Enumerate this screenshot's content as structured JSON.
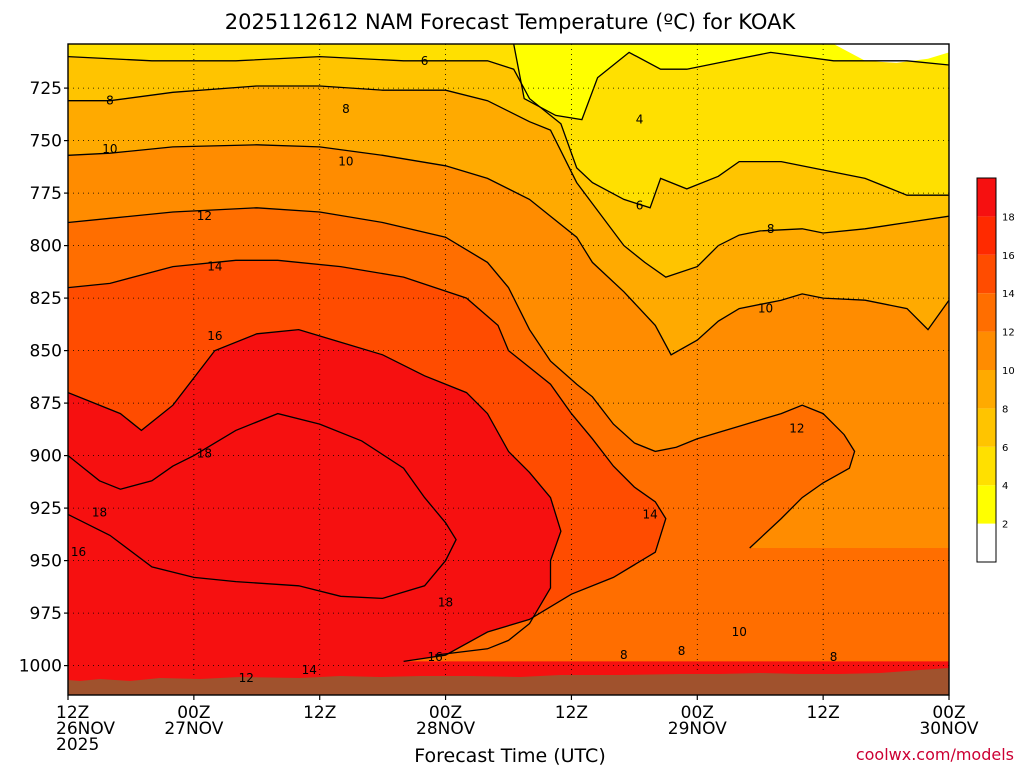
{
  "chart_data": {
    "type": "contour",
    "title": "2025112612 NAM Forecast Temperature (ºC) for KOAK",
    "xlabel": "Forecast Time (UTC)",
    "ylabel": "",
    "x_range_hours": [
      0,
      84
    ],
    "x_ticks": [
      {
        "hour": 0,
        "lines": [
          "12Z",
          "26NOV",
          "2025"
        ]
      },
      {
        "hour": 12,
        "lines": [
          "00Z",
          "27NOV"
        ]
      },
      {
        "hour": 24,
        "lines": [
          "12Z"
        ]
      },
      {
        "hour": 36,
        "lines": [
          "00Z",
          "28NOV"
        ]
      },
      {
        "hour": 48,
        "lines": [
          "12Z"
        ]
      },
      {
        "hour": 60,
        "lines": [
          "00Z",
          "29NOV"
        ]
      },
      {
        "hour": 72,
        "lines": [
          "12Z"
        ]
      },
      {
        "hour": 84,
        "lines": [
          "00Z",
          "30NOV"
        ]
      }
    ],
    "y_range_hpa": [
      704,
      1014
    ],
    "y_ticks": [
      725,
      750,
      775,
      800,
      825,
      850,
      875,
      900,
      925,
      950,
      975,
      1000
    ],
    "units": "°C",
    "legend": {
      "levels": [
        2,
        4,
        6,
        8,
        10,
        12,
        14,
        16,
        18
      ],
      "labels": [
        "2",
        "4",
        "6",
        "8",
        "10",
        "12",
        "14",
        "16",
        "18"
      ],
      "colors": [
        "#ffffff",
        "#ffff00",
        "#ffe000",
        "#ffc400",
        "#ffaa00",
        "#ff8c00",
        "#ff6e00",
        "#ff4c00",
        "#ff2a00",
        "#f61010"
      ]
    },
    "series": [
      {
        "level": 4,
        "points": [
          [
            42.5,
            704
          ],
          [
            43.5,
            730
          ],
          [
            46.5,
            738
          ],
          [
            49,
            740
          ],
          [
            50.5,
            720
          ],
          [
            53.5,
            708
          ],
          [
            56.5,
            716
          ],
          [
            59,
            716
          ],
          [
            63,
            712
          ],
          [
            67,
            708
          ],
          [
            70,
            710
          ],
          [
            73,
            712
          ],
          [
            76,
            712
          ],
          [
            80,
            712
          ],
          [
            84,
            714
          ]
        ]
      },
      {
        "level": 6,
        "points": [
          [
            0,
            710
          ],
          [
            8,
            712
          ],
          [
            16,
            712
          ],
          [
            24,
            710
          ],
          [
            32,
            712
          ],
          [
            40,
            712
          ],
          [
            42.5,
            716
          ],
          [
            44,
            730
          ],
          [
            47,
            742
          ],
          [
            48.5,
            763
          ],
          [
            50,
            770
          ],
          [
            53,
            778
          ],
          [
            55.5,
            782
          ],
          [
            56.5,
            768
          ],
          [
            59,
            773
          ],
          [
            62,
            767
          ],
          [
            64,
            760
          ],
          [
            68,
            760
          ],
          [
            72,
            764
          ],
          [
            76,
            768
          ],
          [
            80,
            776
          ],
          [
            84,
            776
          ]
        ]
      },
      {
        "level": 8,
        "points": [
          [
            0,
            731
          ],
          [
            4,
            731
          ],
          [
            10,
            727
          ],
          [
            18,
            724
          ],
          [
            24,
            724
          ],
          [
            30,
            726
          ],
          [
            36,
            726
          ],
          [
            40,
            731
          ],
          [
            44,
            741
          ],
          [
            46,
            745
          ],
          [
            48.5,
            770
          ],
          [
            50,
            780
          ],
          [
            53,
            800
          ],
          [
            55,
            808
          ],
          [
            57,
            815
          ],
          [
            60,
            810
          ],
          [
            62,
            800
          ],
          [
            64,
            795
          ],
          [
            66,
            793
          ],
          [
            70,
            792
          ],
          [
            72,
            794
          ],
          [
            76,
            792
          ],
          [
            80,
            789
          ],
          [
            84,
            786
          ]
        ]
      },
      {
        "level": 10,
        "points": [
          [
            0,
            757
          ],
          [
            4,
            756
          ],
          [
            10,
            753
          ],
          [
            18,
            752
          ],
          [
            24,
            753
          ],
          [
            30,
            757
          ],
          [
            36,
            762
          ],
          [
            40,
            768
          ],
          [
            44,
            778
          ],
          [
            46,
            786
          ],
          [
            48.5,
            796
          ],
          [
            50,
            808
          ],
          [
            53,
            822
          ],
          [
            56,
            838
          ],
          [
            57.5,
            852
          ],
          [
            60,
            845
          ],
          [
            62,
            836
          ],
          [
            64,
            830
          ],
          [
            68,
            826
          ],
          [
            70,
            823
          ],
          [
            72,
            825
          ],
          [
            76,
            826
          ],
          [
            80,
            830
          ],
          [
            82,
            840
          ],
          [
            84,
            826
          ]
        ]
      },
      {
        "level": 12,
        "points": [
          [
            0,
            789
          ],
          [
            4,
            787
          ],
          [
            10,
            784
          ],
          [
            18,
            782
          ],
          [
            24,
            784
          ],
          [
            30,
            789
          ],
          [
            36,
            796
          ],
          [
            40,
            808
          ],
          [
            42,
            820
          ],
          [
            44,
            840
          ],
          [
            46,
            855
          ],
          [
            48.5,
            866
          ],
          [
            50,
            872
          ],
          [
            52,
            885
          ],
          [
            54,
            894
          ],
          [
            56,
            898
          ],
          [
            58,
            896
          ],
          [
            60,
            892
          ],
          [
            64,
            886
          ],
          [
            68,
            880
          ],
          [
            70,
            876
          ],
          [
            72,
            880
          ],
          [
            74,
            890
          ],
          [
            75,
            898
          ],
          [
            74.5,
            906
          ],
          [
            72,
            913
          ],
          [
            70,
            920
          ],
          [
            68,
            930
          ],
          [
            65,
            944
          ]
        ]
      },
      {
        "level": 14,
        "points": [
          [
            0,
            820
          ],
          [
            4,
            818
          ],
          [
            10,
            810
          ],
          [
            16,
            807
          ],
          [
            20,
            807
          ],
          [
            26,
            810
          ],
          [
            32,
            815
          ],
          [
            38,
            825
          ],
          [
            41,
            838
          ],
          [
            42,
            850
          ],
          [
            44,
            858
          ],
          [
            46,
            866
          ],
          [
            48,
            880
          ],
          [
            50,
            892
          ],
          [
            52,
            905
          ],
          [
            54,
            915
          ],
          [
            56,
            922
          ],
          [
            57,
            930
          ],
          [
            56,
            946
          ],
          [
            52,
            958
          ],
          [
            48,
            966
          ],
          [
            44,
            978
          ],
          [
            40,
            984
          ],
          [
            36,
            995
          ],
          [
            32,
            998
          ]
        ]
      },
      {
        "level": 16,
        "points": [
          [
            0,
            870
          ],
          [
            2,
            874
          ],
          [
            5,
            880
          ],
          [
            7,
            888
          ],
          [
            10,
            876
          ],
          [
            14,
            850
          ],
          [
            18,
            842
          ],
          [
            22,
            840
          ],
          [
            26,
            846
          ],
          [
            30,
            852
          ],
          [
            34,
            862
          ],
          [
            38,
            870
          ],
          [
            40,
            880
          ],
          [
            42,
            898
          ],
          [
            44,
            908
          ],
          [
            46,
            920
          ],
          [
            47,
            936
          ],
          [
            46,
            950
          ],
          [
            46,
            963
          ],
          [
            44,
            980
          ],
          [
            42,
            988
          ],
          [
            40,
            992
          ],
          [
            35,
            995
          ]
        ]
      },
      {
        "level": 18,
        "points": [
          [
            0,
            900
          ],
          [
            3,
            912
          ],
          [
            5,
            916
          ],
          [
            8,
            912
          ],
          [
            10,
            905
          ],
          [
            12,
            900
          ],
          [
            16,
            888
          ],
          [
            20,
            880
          ],
          [
            24,
            885
          ],
          [
            28,
            893
          ],
          [
            32,
            906
          ],
          [
            34,
            920
          ],
          [
            36,
            932
          ],
          [
            37,
            940
          ],
          [
            36,
            950
          ],
          [
            34,
            962
          ],
          [
            30,
            968
          ],
          [
            26,
            967
          ],
          [
            22,
            962
          ],
          [
            16,
            960
          ],
          [
            12,
            958
          ],
          [
            8,
            953
          ],
          [
            4,
            938
          ],
          [
            0,
            928
          ]
        ]
      }
    ],
    "contour_labels": [
      {
        "text": "4",
        "hour": 54.5,
        "hpa": 740
      },
      {
        "text": "6",
        "hour": 34,
        "hpa": 712
      },
      {
        "text": "6",
        "hour": 54.5,
        "hpa": 781
      },
      {
        "text": "8",
        "hour": 4,
        "hpa": 731
      },
      {
        "text": "8",
        "hour": 26.5,
        "hpa": 735
      },
      {
        "text": "8",
        "hour": 67,
        "hpa": 792
      },
      {
        "text": "8",
        "hour": 53,
        "hpa": 995
      },
      {
        "text": "8",
        "hour": 58.5,
        "hpa": 993
      },
      {
        "text": "8",
        "hour": 73,
        "hpa": 996
      },
      {
        "text": "10",
        "hour": 4,
        "hpa": 754
      },
      {
        "text": "10",
        "hour": 26.5,
        "hpa": 760
      },
      {
        "text": "10",
        "hour": 66.5,
        "hpa": 830
      },
      {
        "text": "10",
        "hour": 64,
        "hpa": 984
      },
      {
        "text": "12",
        "hour": 13,
        "hpa": 786
      },
      {
        "text": "12",
        "hour": 69.5,
        "hpa": 887
      },
      {
        "text": "12",
        "hour": 17,
        "hpa": 1006
      },
      {
        "text": "14",
        "hour": 14,
        "hpa": 810
      },
      {
        "text": "14",
        "hour": 55.5,
        "hpa": 928
      },
      {
        "text": "14",
        "hour": 23,
        "hpa": 1002
      },
      {
        "text": "16",
        "hour": 14,
        "hpa": 843
      },
      {
        "text": "16",
        "hour": 1,
        "hpa": 946
      },
      {
        "text": "16",
        "hour": 35,
        "hpa": 996
      },
      {
        "text": "18",
        "hour": 13,
        "hpa": 899
      },
      {
        "text": "18",
        "hour": 3,
        "hpa": 927
      },
      {
        "text": "18",
        "hour": 36,
        "hpa": 970
      }
    ]
  },
  "credit": "coolwx.com/models"
}
